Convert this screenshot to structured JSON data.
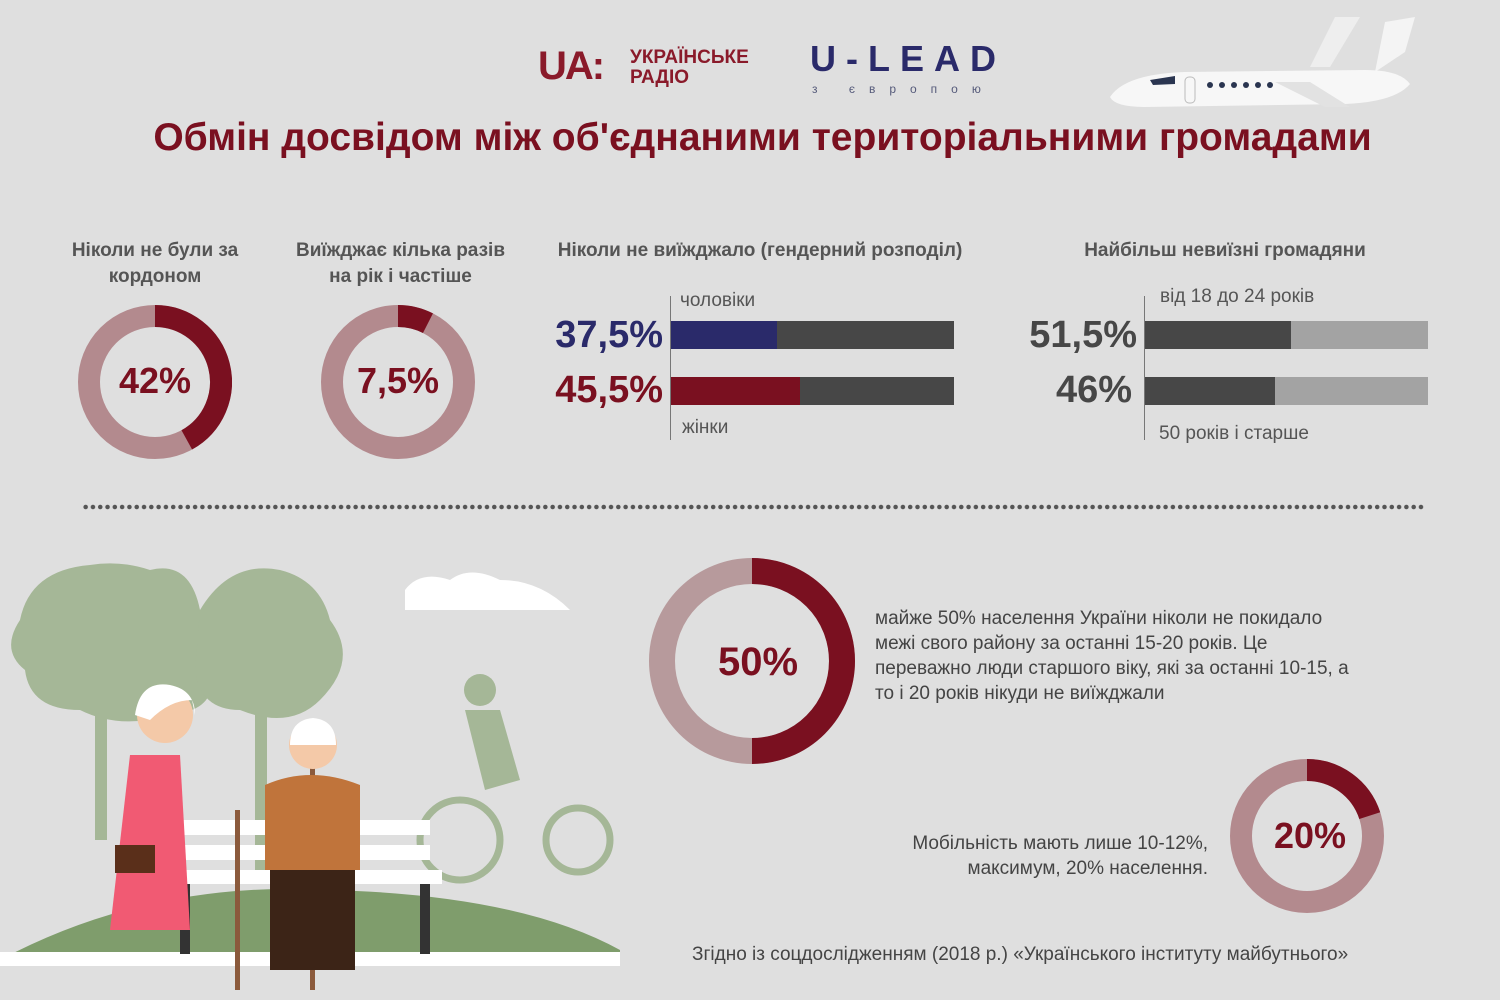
{
  "header": {
    "logo_ua": {
      "mark": "UA:",
      "line1": "УКРАЇНСЬКЕ",
      "line2": "РАДІО"
    },
    "logo_ulead": {
      "mark": "U-LEAD",
      "sub": "з європою"
    },
    "title": "Обмін досвідом між об'єднаними територіальними громадами"
  },
  "colors": {
    "accent": "#7a1020",
    "donut_rest": "#b58a8e",
    "navy": "#2a2a6a",
    "bar_dark": "#474747",
    "bar_light": "#a3a3a3"
  },
  "chart_data": [
    {
      "type": "pie",
      "variant": "donut",
      "title": "Ніколи не були за кордоном",
      "value": 42,
      "label": "42%"
    },
    {
      "type": "pie",
      "variant": "donut",
      "title": "Виїжджає кілька разів на рік і частіше",
      "value": 7.5,
      "label": "7,5%"
    },
    {
      "type": "bar",
      "title": "Ніколи не виїжджало (гендерний розподіл)",
      "categories": [
        "чоловіки",
        "жінки"
      ],
      "values": [
        37.5,
        45.5
      ],
      "labels": [
        "37,5%",
        "45,5%"
      ],
      "ylim": [
        0,
        100
      ]
    },
    {
      "type": "bar",
      "title": "Найбільш невиїзні громадяни",
      "categories": [
        "від 18 до 24 років",
        "50 років і старше"
      ],
      "values": [
        51.5,
        46
      ],
      "labels": [
        "51,5%",
        "46%"
      ],
      "ylim": [
        0,
        100
      ]
    },
    {
      "type": "pie",
      "variant": "donut",
      "value": 50,
      "label": "50%"
    },
    {
      "type": "pie",
      "variant": "donut",
      "value": 20,
      "label": "20%"
    }
  ],
  "text": {
    "para1": "майже 50% населення України ніколи не покидало межі свого району за останні 15-20 років. Це переважно люди старшого віку, які за останні 10-15, а то і 20 років нікуди не виїжджали",
    "para2_l1": "Мобільність мають лише 10-12%,",
    "para2_l2": "максимум, 20% населення.",
    "source": "Згідно із соцдослідженням (2018 р.) «Українського інституту майбутнього»"
  }
}
